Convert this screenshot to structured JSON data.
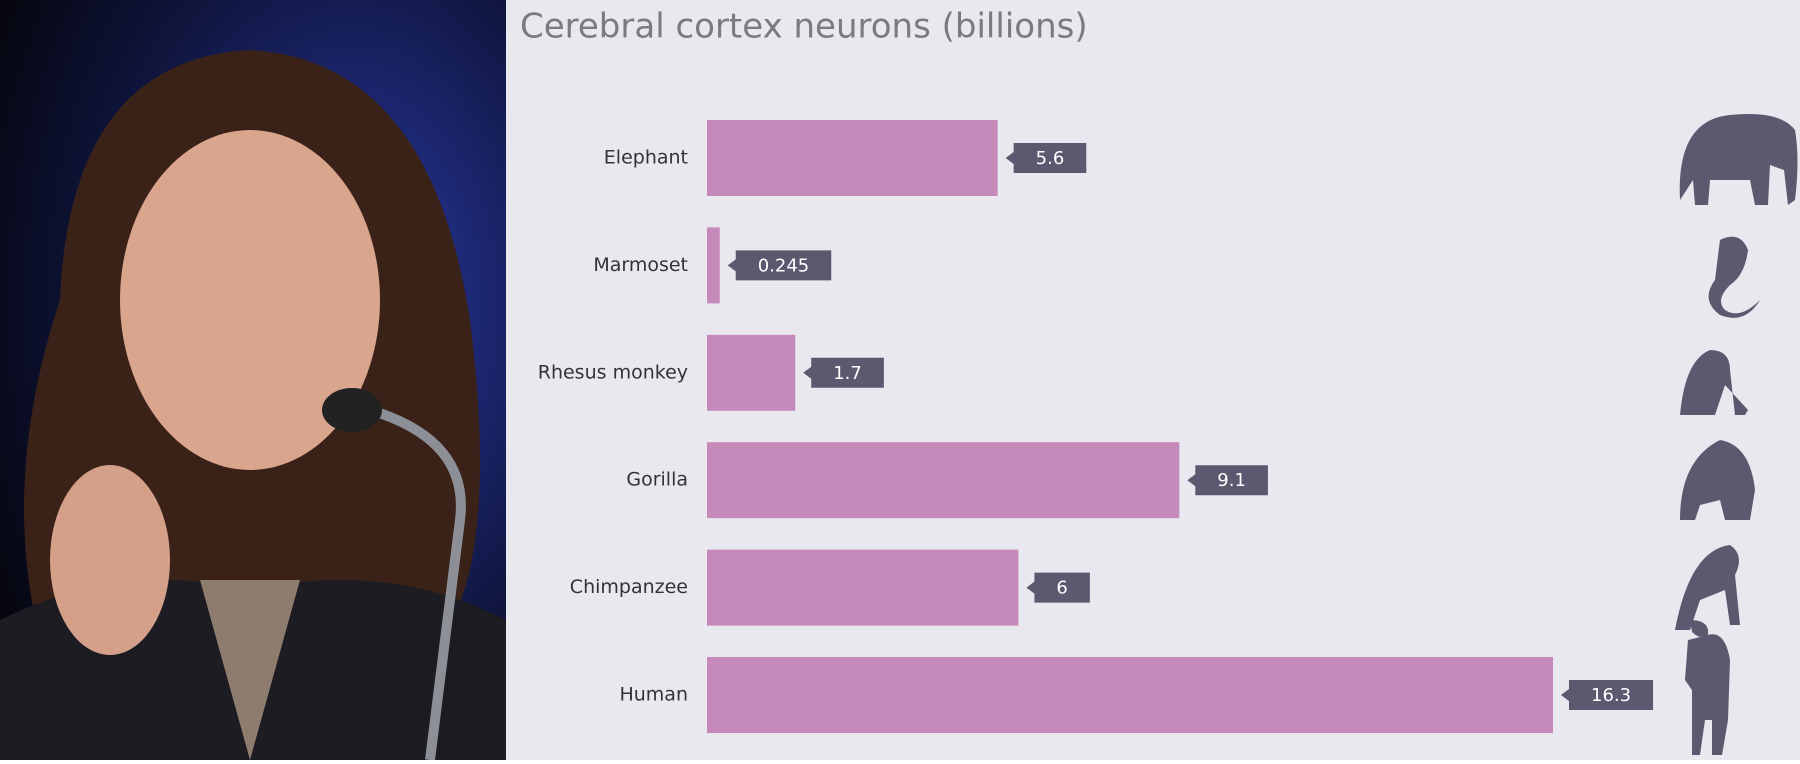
{
  "chart_data": {
    "type": "bar",
    "orientation": "horizontal",
    "title": "Cerebral cortex neurons (billions)",
    "categories": [
      "Elephant",
      "Marmoset",
      "Rhesus monkey",
      "Gorilla",
      "Chimpanzee",
      "Human"
    ],
    "values": [
      5.6,
      0.245,
      1.7,
      9.1,
      6,
      16.3
    ],
    "color": "#c68aba",
    "label_color": "#5b5870"
  }
}
